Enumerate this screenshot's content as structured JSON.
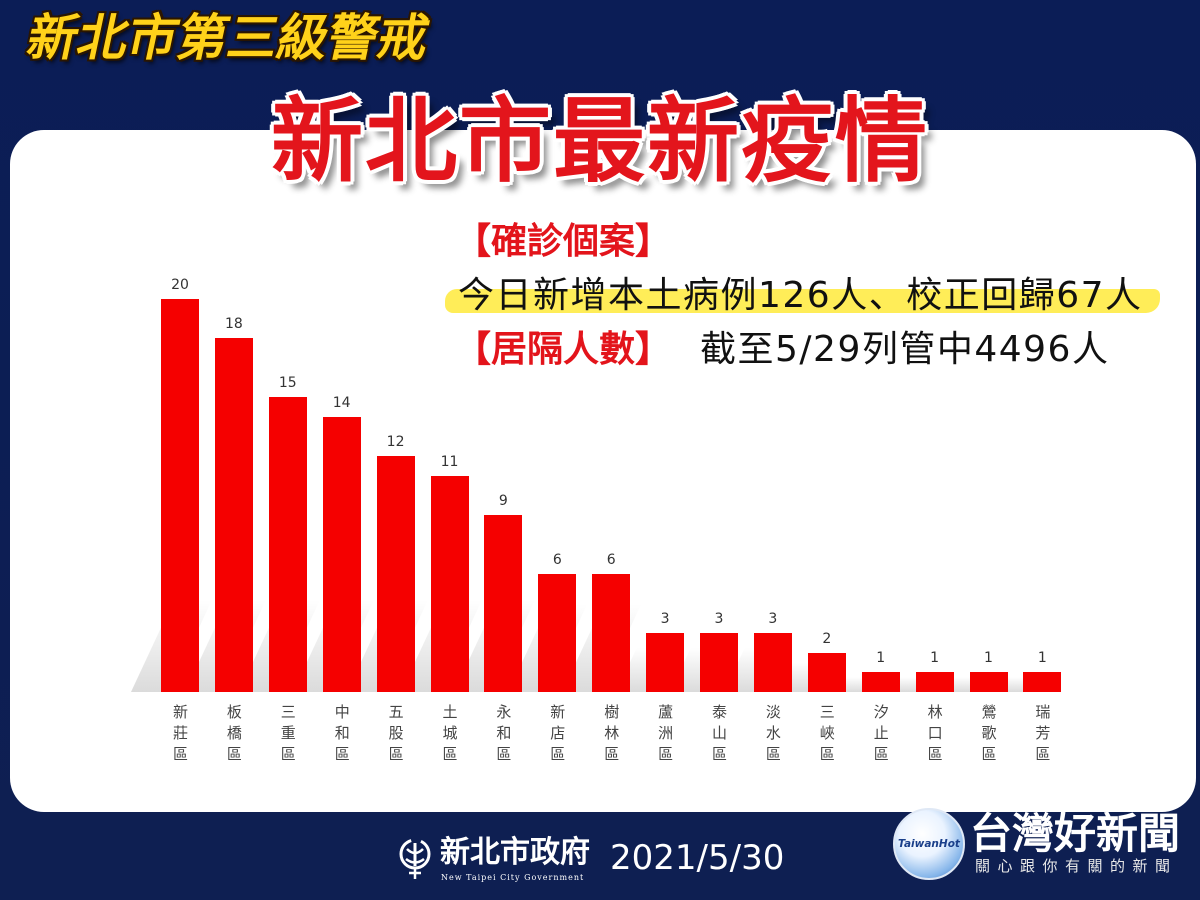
{
  "header": {
    "alert_title": "新北市第三級警戒",
    "main_title": "新北市最新疫情"
  },
  "info": {
    "confirmed_label": "【確診個案】",
    "confirmed_text": "今日新增本土病例126人、校正回歸67人",
    "quarantine_label": "【居隔人數】",
    "quarantine_text": "截至5/29列管中4496人"
  },
  "chart_data": {
    "type": "bar",
    "categories": [
      "新莊區",
      "板橋區",
      "三重區",
      "中和區",
      "五股區",
      "土城區",
      "永和區",
      "新店區",
      "樹林區",
      "蘆洲區",
      "泰山區",
      "淡水區",
      "三峽區",
      "汐止區",
      "林口區",
      "鶯歌區",
      "瑞芳區"
    ],
    "values": [
      20,
      18,
      15,
      14,
      12,
      11,
      9,
      6,
      6,
      3,
      3,
      3,
      2,
      1,
      1,
      1,
      1
    ],
    "ylim": [
      0,
      20
    ],
    "grid": false
  },
  "footer": {
    "org_name": "新北市政府",
    "org_name_en": "New Taipei City Government",
    "date": "2021/5/30",
    "watermark": {
      "logo_text": "TaiwanHot",
      "brand": "台灣好新聞",
      "slogan": "關心跟你有關的新聞"
    }
  },
  "icons": {
    "emblem": "new-taipei-emblem-icon",
    "globe": "taiwanhot-globe-icon"
  },
  "colors": {
    "background": "#0d1f55",
    "card": "#ffffff",
    "bar": "#f50000",
    "title_red": "#e3151c",
    "alert_gold": "#ffd21a",
    "highlight": "#ffec4f"
  }
}
